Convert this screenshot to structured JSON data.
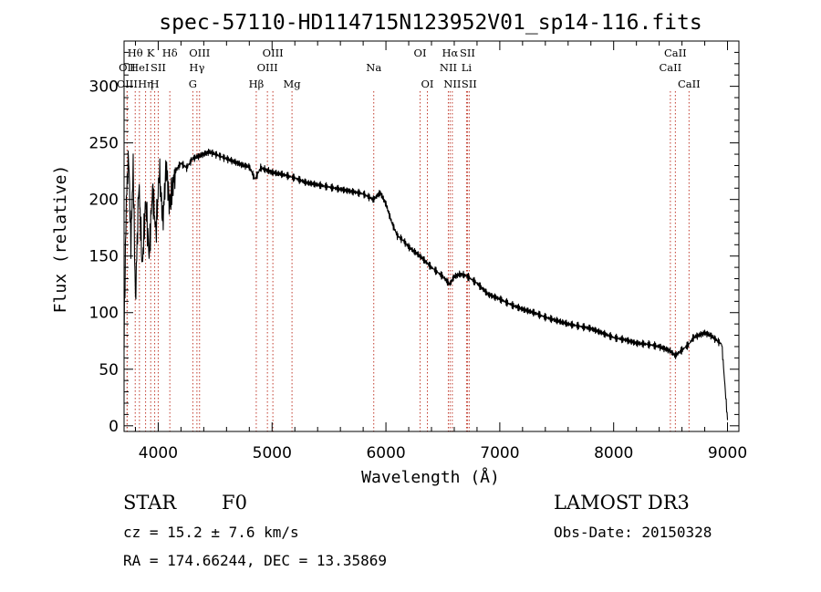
{
  "chart_data": {
    "type": "line",
    "title": "spec-57110-HD114715N123952V01_sp14-116.fits",
    "xlabel": "Wavelength (Å)",
    "ylabel": "Flux (relative)",
    "xlim": [
      3700,
      9100
    ],
    "ylim": [
      -5,
      340
    ],
    "xticks": [
      4000,
      5000,
      6000,
      7000,
      8000,
      9000
    ],
    "yticks": [
      0,
      50,
      100,
      150,
      200,
      250,
      300
    ],
    "series": [
      {
        "name": "flux",
        "x": [
          3700,
          3720,
          3740,
          3760,
          3780,
          3800,
          3830,
          3860,
          3890,
          3920,
          3950,
          3980,
          4010,
          4040,
          4070,
          4100,
          4150,
          4200,
          4250,
          4300,
          4350,
          4400,
          4450,
          4500,
          4550,
          4600,
          4650,
          4700,
          4750,
          4800,
          4850,
          4900,
          4950,
          5000,
          5100,
          5200,
          5300,
          5400,
          5500,
          5600,
          5700,
          5800,
          5890,
          5950,
          6000,
          6050,
          6100,
          6150,
          6200,
          6300,
          6400,
          6500,
          6560,
          6600,
          6650,
          6700,
          6800,
          6900,
          7000,
          7100,
          7200,
          7300,
          7400,
          7500,
          7600,
          7700,
          7800,
          7900,
          8000,
          8100,
          8200,
          8300,
          8400,
          8450,
          8500,
          8540,
          8600,
          8660,
          8700,
          8750,
          8800,
          8850,
          8900,
          8950,
          9000
        ],
        "y": [
          80,
          200,
          240,
          160,
          230,
          110,
          215,
          140,
          200,
          150,
          210,
          170,
          225,
          180,
          230,
          195,
          225,
          232,
          228,
          236,
          238,
          240,
          242,
          240,
          238,
          236,
          234,
          232,
          230,
          229,
          218,
          228,
          226,
          224,
          222,
          219,
          215,
          213,
          211,
          209,
          207,
          205,
          200,
          206,
          196,
          180,
          168,
          164,
          158,
          150,
          140,
          132,
          125,
          132,
          134,
          133,
          126,
          116,
          112,
          107,
          103,
          100,
          96,
          93,
          90,
          88,
          86,
          82,
          78,
          76,
          73,
          72,
          70,
          68,
          66,
          62,
          67,
          72,
          78,
          80,
          82,
          80,
          76,
          72,
          5
        ]
      }
    ],
    "spectral_lines": [
      {
        "label": "Hθ",
        "x": 3798,
        "row": 1
      },
      {
        "label": "OII",
        "x": 3727,
        "row": 2
      },
      {
        "label": "OIII",
        "x": 3727,
        "row": 3
      },
      {
        "label": "HeI",
        "x": 3835,
        "row": 2
      },
      {
        "label": "Hη",
        "x": 3889,
        "row": 3
      },
      {
        "label": "K",
        "x": 3934,
        "row": 1
      },
      {
        "label": "SII",
        "x": 4000,
        "row": 2
      },
      {
        "label": "H",
        "x": 3969,
        "row": 3
      },
      {
        "label": "Hδ",
        "x": 4102,
        "row": 1
      },
      {
        "label": "OIII",
        "x": 4363,
        "row": 1
      },
      {
        "label": "Hγ",
        "x": 4340,
        "row": 2
      },
      {
        "label": "G",
        "x": 4304,
        "row": 3
      },
      {
        "label": "Hβ",
        "x": 4861,
        "row": 3
      },
      {
        "label": "OIII",
        "x": 5007,
        "row": 1
      },
      {
        "label": "OIII",
        "x": 4959,
        "row": 2
      },
      {
        "label": "Mg",
        "x": 5175,
        "row": 3
      },
      {
        "label": "Na",
        "x": 5893,
        "row": 2
      },
      {
        "label": "OI",
        "x": 6300,
        "row": 1
      },
      {
        "label": "OI",
        "x": 6364,
        "row": 3
      },
      {
        "label": "Hα",
        "x": 6563,
        "row": 1
      },
      {
        "label": "SII",
        "x": 6716,
        "row": 1
      },
      {
        "label": "NII",
        "x": 6548,
        "row": 2
      },
      {
        "label": "Li",
        "x": 6708,
        "row": 2
      },
      {
        "label": "NII",
        "x": 6583,
        "row": 3
      },
      {
        "label": "SII",
        "x": 6731,
        "row": 3
      },
      {
        "label": "CaII",
        "x": 8542,
        "row": 1
      },
      {
        "label": "CaII",
        "x": 8498,
        "row": 2
      },
      {
        "label": "CaII",
        "x": 8662,
        "row": 3
      }
    ]
  },
  "info": {
    "object_class": "STAR",
    "subclass": "F0",
    "survey": "LAMOST DR3",
    "redshift": "cz = 15.2 ± 7.6 km/s",
    "obs_date": "Obs-Date: 20150328",
    "coords": "RA = 174.66244, DEC =  13.35869"
  }
}
